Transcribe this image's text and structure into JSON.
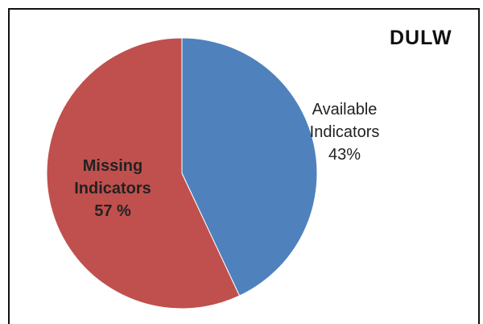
{
  "chart_data": {
    "type": "pie",
    "title": "DULW",
    "slices": [
      {
        "name_lines": [
          "Available",
          "Indicators"
        ],
        "value": 43,
        "label": "43%",
        "color": "#4f81bd"
      },
      {
        "name_lines": [
          "Missing",
          "Indicators"
        ],
        "value": 57,
        "label": "57 %",
        "color": "#c0504d"
      }
    ],
    "legend": "none"
  }
}
